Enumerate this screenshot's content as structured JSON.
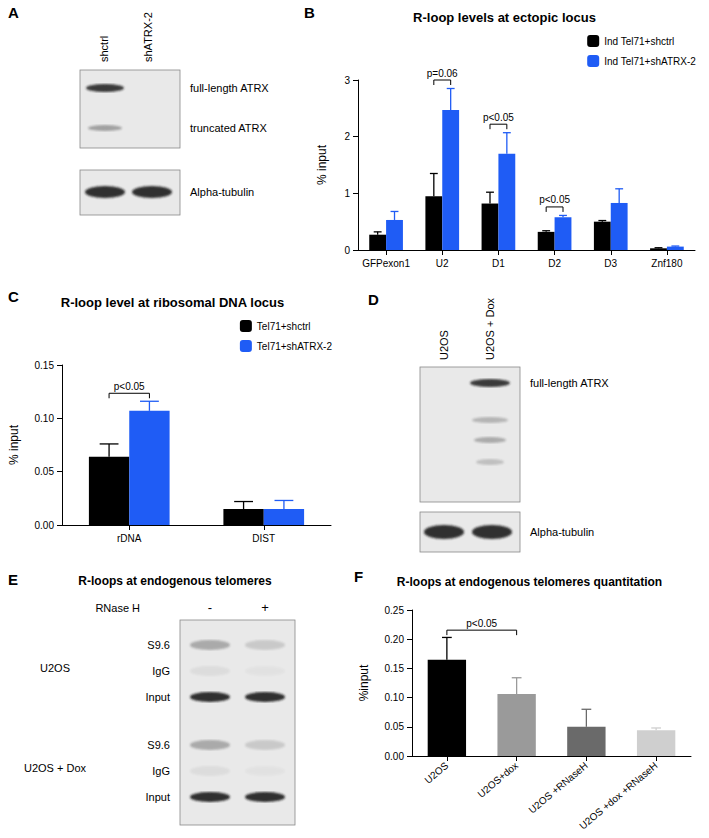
{
  "chart_data": [
    {
      "panel": "B",
      "type": "bar",
      "title": "R-loop levels at ectopic locus",
      "y_label": "% input",
      "categories": [
        "GFPexon1",
        "U2",
        "D1",
        "D2",
        "D3",
        "Znf180"
      ],
      "series": [
        {
          "name": "Ind Tel71+shctrl",
          "color": "#000000",
          "values": [
            0.27,
            0.95,
            0.82,
            0.32,
            0.5,
            0.03
          ],
          "errors": [
            0.05,
            0.4,
            0.2,
            0.02,
            0.02,
            0.01
          ]
        },
        {
          "name": "Ind Tel71+shATRX-2",
          "color": "#1f5cf5",
          "values": [
            0.53,
            2.47,
            1.7,
            0.58,
            0.83,
            0.06
          ],
          "errors": [
            0.15,
            0.38,
            0.37,
            0.03,
            0.25,
            0.01
          ]
        }
      ],
      "ylim": [
        0,
        3
      ],
      "yticks": [
        0,
        1,
        2,
        3
      ],
      "grid": false,
      "legend": "top-right",
      "annotations": [
        {
          "text": "p=0.06",
          "categories": [
            "U2"
          ]
        },
        {
          "text": "p<0.05",
          "categories": [
            "D1"
          ]
        },
        {
          "text": "p<0.05",
          "categories": [
            "D2"
          ]
        }
      ]
    },
    {
      "panel": "C",
      "type": "bar",
      "title": "R-loop level at ribosomal DNA locus",
      "y_label": "% input",
      "categories": [
        "rDNA",
        "DIST"
      ],
      "series": [
        {
          "name": "Tel71+shctrl",
          "color": "#000000",
          "values": [
            0.064,
            0.015
          ],
          "errors": [
            0.012,
            0.007
          ]
        },
        {
          "name": "Tel71+shATRX-2",
          "color": "#1f5cf5",
          "values": [
            0.107,
            0.015
          ],
          "errors": [
            0.009,
            0.008
          ]
        }
      ],
      "ylim": [
        0,
        0.15
      ],
      "yticks": [
        {
          "value": 0,
          "label": "0.00"
        },
        {
          "value": 0.05,
          "label": "0.05"
        },
        {
          "value": 0.1,
          "label": "0.10"
        },
        {
          "value": 0.15,
          "label": "0.15"
        }
      ],
      "grid": false,
      "legend": "top-right",
      "annotations": [
        {
          "text": "p<0.05",
          "categories": [
            "rDNA"
          ]
        }
      ]
    },
    {
      "panel": "F",
      "type": "bar",
      "title": "R-loops at endogenous telomeres quantitation",
      "y_label": "%input",
      "categories": [
        "U2OS",
        "U2OS+dox",
        "U2OS +RNaseH",
        "U2OS +dox +RNaseH"
      ],
      "values": [
        0.165,
        0.106,
        0.05,
        0.044
      ],
      "errors": [
        0.038,
        0.028,
        0.03,
        0.004
      ],
      "colors": [
        "#000000",
        "#9a9a9a",
        "#6a6a6a",
        "#cfcfcf"
      ],
      "ylim": [
        0,
        0.25
      ],
      "yticks": [
        {
          "value": 0,
          "label": "0.00"
        },
        {
          "value": 0.05,
          "label": "0.05"
        },
        {
          "value": 0.1,
          "label": "0.10"
        },
        {
          "value": 0.15,
          "label": "0.15"
        },
        {
          "value": 0.2,
          "label": "0.20"
        },
        {
          "value": 0.25,
          "label": "0.25"
        }
      ],
      "grid": false,
      "annotations": [
        {
          "text": "p<0.05",
          "categories": [
            "U2OS",
            "U2OS+dox"
          ]
        }
      ]
    }
  ],
  "blots": {
    "A": {
      "panel": "A",
      "lanes": [
        "shctrl",
        "shATRX-2"
      ],
      "bands": [
        "full-length ATRX",
        "truncated ATRX"
      ],
      "loading_control": "Alpha-tubulin"
    },
    "D": {
      "panel": "D",
      "lanes": [
        "U2OS",
        "U2OS + Dox"
      ],
      "bands": [
        "full-length ATRX"
      ],
      "loading_control": "Alpha-tubulin"
    },
    "E": {
      "panel": "E",
      "title": "R-loops at endogenous telomeres",
      "treatment": "RNase H",
      "conditions": [
        "-",
        "+"
      ],
      "groups": [
        {
          "name": "U2OS",
          "rows": [
            "S9.6",
            "IgG",
            "Input"
          ]
        },
        {
          "name": "U2OS + Dox",
          "rows": [
            "S9.6",
            "IgG",
            "Input"
          ]
        }
      ]
    }
  }
}
